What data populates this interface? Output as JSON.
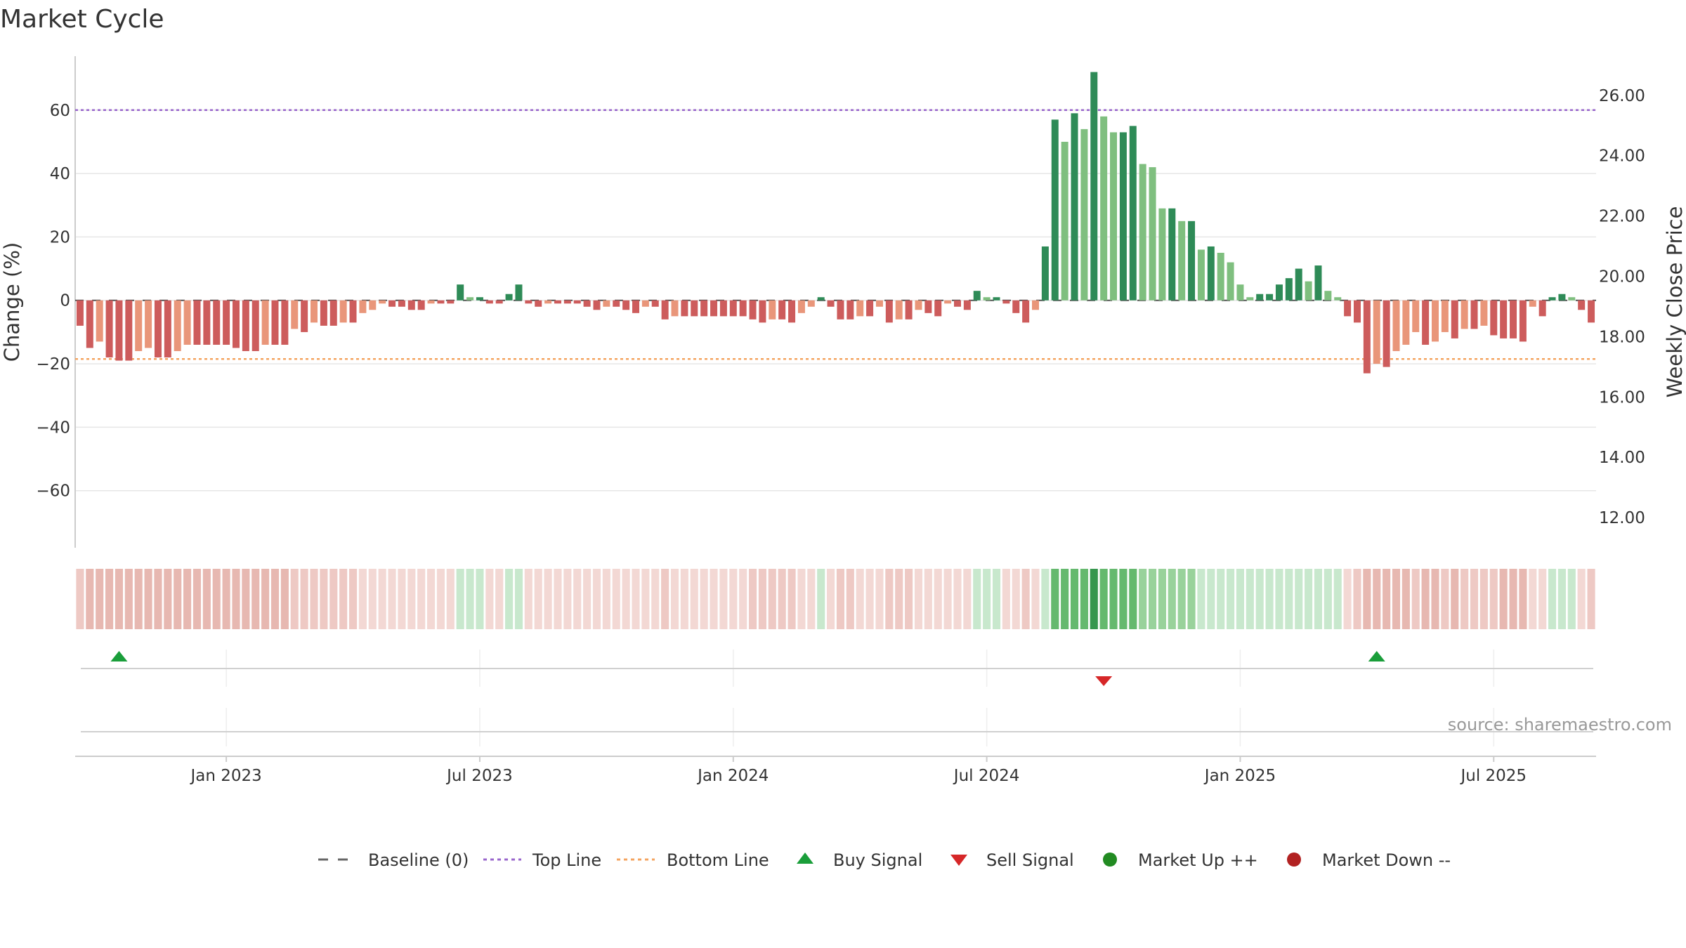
{
  "chart_data": {
    "type": "bar",
    "title": "Market Cycle",
    "ylabel_left": "Change (%)",
    "ylabel_right": "Weekly Close Price",
    "ylim_left": [
      -78,
      77
    ],
    "ylim_right": [
      11,
      27.3
    ],
    "y_ticks_left": [
      {
        "v": 60,
        "label": "60"
      },
      {
        "v": 40,
        "label": "40"
      },
      {
        "v": 20,
        "label": "20"
      },
      {
        "v": 0,
        "label": "0"
      },
      {
        "v": -20,
        "label": "−20"
      },
      {
        "v": -40,
        "label": "−40"
      },
      {
        "v": -60,
        "label": "−60"
      }
    ],
    "y_ticks_right": [
      {
        "v": 26,
        "label": "26.00"
      },
      {
        "v": 24,
        "label": "24.00"
      },
      {
        "v": 22,
        "label": "22.00"
      },
      {
        "v": 20,
        "label": "20.00"
      },
      {
        "v": 18,
        "label": "18.00"
      },
      {
        "v": 16,
        "label": "16.00"
      },
      {
        "v": 14,
        "label": "14.00"
      },
      {
        "v": 12,
        "label": "12.00"
      }
    ],
    "x_ticks": [
      {
        "i": 15,
        "label": "Jan 2023"
      },
      {
        "i": 41,
        "label": "Jul 2023"
      },
      {
        "i": 67,
        "label": "Jan 2024"
      },
      {
        "i": 93,
        "label": "Jul 2024"
      },
      {
        "i": 119,
        "label": "Jan 2025"
      },
      {
        "i": 145,
        "label": "Jul 2025"
      }
    ],
    "top_line": 60,
    "bottom_line": -18.5,
    "baseline": 0,
    "values": [
      -8,
      -15,
      -13,
      -18,
      -19,
      -19,
      -16,
      -15,
      -18,
      -18,
      -16,
      -14,
      -14,
      -14,
      -14,
      -14,
      -15,
      -16,
      -16,
      -14,
      -14,
      -14,
      -9,
      -10,
      -7,
      -8,
      -8,
      -7,
      -7,
      -4,
      -3,
      -1,
      -2,
      -2,
      -3,
      -3,
      -1,
      -1,
      -1,
      5,
      1,
      1,
      -1,
      -1,
      2,
      5,
      -1,
      -2,
      -1,
      -1,
      -1,
      -1,
      -2,
      -3,
      -2,
      -2,
      -3,
      -4,
      -2,
      -2,
      -6,
      -5,
      -5,
      -5,
      -5,
      -5,
      -5,
      -5,
      -5,
      -6,
      -7,
      -6,
      -6,
      -7,
      -4,
      -2,
      1,
      -2,
      -6,
      -6,
      -5,
      -5,
      -2,
      -7,
      -6,
      -6,
      -3,
      -4,
      -5,
      -1,
      -2,
      -3,
      3,
      1,
      1,
      -1,
      -4,
      -7,
      -3,
      17,
      57,
      50,
      59,
      54,
      72,
      58,
      53,
      53,
      55,
      43,
      42,
      29,
      29,
      25,
      25,
      16,
      17,
      15,
      12,
      5,
      1,
      2,
      2,
      5,
      7,
      10,
      6,
      11,
      3,
      1,
      -5,
      -7,
      -23,
      -20,
      -21,
      -16,
      -14,
      -10,
      -14,
      -13,
      -10,
      -12,
      -9,
      -9,
      -8,
      -11,
      -12,
      -12,
      -13,
      -2,
      -5,
      1,
      2,
      1,
      -3,
      -7
    ],
    "buy_signals": [
      4,
      133
    ],
    "sell_signals": [
      105
    ],
    "source": "source: sharemaestro.com",
    "legend": {
      "baseline": "Baseline (0)",
      "top_line": "Top Line",
      "bottom_line": "Bottom Line",
      "buy": "Buy Signal",
      "sell": "Sell Signal",
      "up": "Market Up ++",
      "down": "Market Down --"
    }
  },
  "colors": {
    "up_strong": "#2e8b57",
    "up_light": "#7fbf7f",
    "down_strong": "#cd5c5c",
    "down_light": "#e9967a",
    "top_line": "#9966cc",
    "bottom_line": "#f4a460",
    "baseline": "#555555",
    "buy": "#1a9e3a",
    "sell": "#d62728",
    "market_up": "#228b22",
    "market_down": "#b22222",
    "grid": "#e6e6e6",
    "axis": "#cccccc",
    "text": "#333333"
  }
}
